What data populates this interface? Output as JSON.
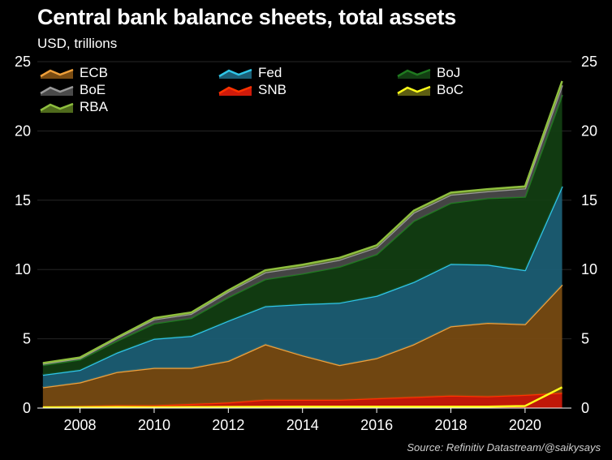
{
  "chart_data": {
    "type": "area",
    "title": "Central bank balance sheets, total assets",
    "subtitle": "USD, trillions",
    "source": "Source: Refinitiv Datastream/@saikysays",
    "x": [
      2007,
      2008,
      2009,
      2010,
      2011,
      2012,
      2013,
      2014,
      2015,
      2016,
      2017,
      2018,
      2019,
      2020,
      2021
    ],
    "x_ticks": [
      2008,
      2010,
      2012,
      2014,
      2016,
      2018,
      2020
    ],
    "xlim": [
      2006.85,
      2021.25
    ],
    "ylim": [
      0,
      25
    ],
    "y_ticks": [
      0,
      5,
      10,
      15,
      20,
      25
    ],
    "stacked": true,
    "legend_position": "top",
    "series": [
      {
        "name": "SNB",
        "color": "#d01a0a",
        "line": "#ff3300",
        "values": [
          0.1,
          0.15,
          0.2,
          0.2,
          0.3,
          0.4,
          0.6,
          0.6,
          0.6,
          0.7,
          0.8,
          0.9,
          0.85,
          0.95,
          1.1
        ]
      },
      {
        "name": "ECB",
        "color": "#7a4c12",
        "line": "#f0a03a",
        "values": [
          1.4,
          1.7,
          2.4,
          2.7,
          2.6,
          3.0,
          4.0,
          3.2,
          2.5,
          2.9,
          3.8,
          5.0,
          5.3,
          5.1,
          7.8
        ]
      },
      {
        "name": "Fed",
        "color": "#1c5f76",
        "line": "#2fc6e8",
        "values": [
          0.9,
          0.9,
          1.4,
          2.1,
          2.3,
          2.9,
          2.75,
          3.7,
          4.5,
          4.5,
          4.5,
          4.5,
          4.2,
          3.9,
          7.1
        ]
      },
      {
        "name": "BoJ",
        "color": "#123f12",
        "line": "#1f7a1f",
        "values": [
          0.7,
          0.75,
          0.85,
          1.1,
          1.3,
          1.7,
          1.95,
          2.2,
          2.6,
          3.0,
          4.4,
          4.4,
          4.8,
          5.3,
          6.6
        ]
      },
      {
        "name": "BoE",
        "color": "#4a4a4a",
        "line": "#9a9a9a",
        "values": [
          0.1,
          0.1,
          0.2,
          0.3,
          0.3,
          0.4,
          0.5,
          0.5,
          0.5,
          0.5,
          0.6,
          0.6,
          0.5,
          0.6,
          0.7
        ]
      },
      {
        "name": "RBA",
        "color": "#4f6a1c",
        "line": "#8fbf3f",
        "values": [
          0.05,
          0.05,
          0.05,
          0.1,
          0.1,
          0.1,
          0.15,
          0.15,
          0.15,
          0.15,
          0.15,
          0.15,
          0.15,
          0.15,
          0.3
        ]
      },
      {
        "name": "BoC",
        "color": "#5e5e12",
        "line": "#ffff1a",
        "overlay": true,
        "values": [
          0.05,
          0.06,
          0.07,
          0.06,
          0.07,
          0.08,
          0.09,
          0.1,
          0.1,
          0.1,
          0.1,
          0.1,
          0.1,
          0.15,
          1.5
        ]
      }
    ]
  }
}
